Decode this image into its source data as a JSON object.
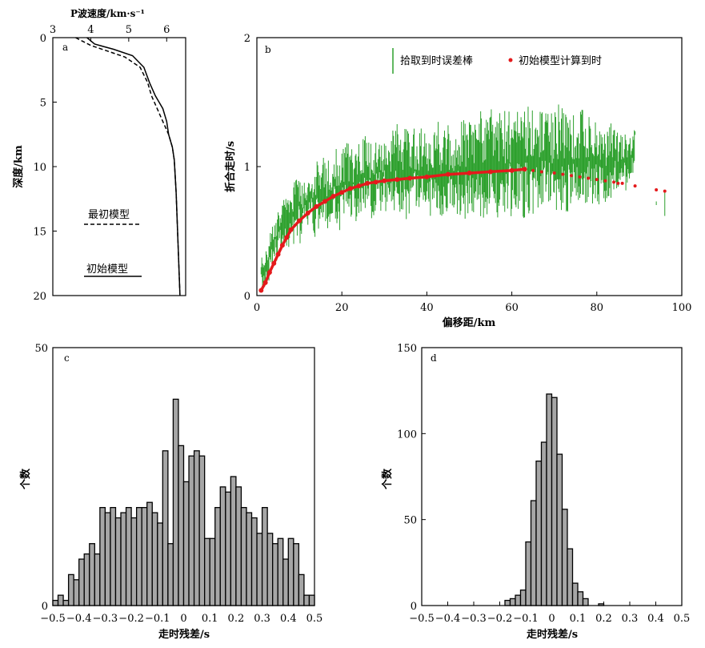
{
  "chart_data": [
    {
      "panel": "a",
      "type": "line",
      "xlabel": "P波速度/km·s⁻¹",
      "ylabel": "深度/km",
      "xlim": [
        3,
        6.5
      ],
      "ylim": [
        0,
        20
      ],
      "x_ticks": [
        "3",
        "4",
        "5",
        "6"
      ],
      "y_ticks": [
        "0",
        "5",
        "10",
        "15",
        "20"
      ],
      "series": [
        {
          "name": "最初模型",
          "style": "dashed",
          "x": [
            3.6,
            4.0,
            4.4,
            4.9,
            5.3,
            5.5,
            5.6,
            5.75,
            5.9,
            6.05,
            6.15,
            6.2,
            6.25,
            6.3,
            6.35
          ],
          "y": [
            0,
            0.6,
            1.0,
            1.5,
            2.3,
            3.5,
            4.5,
            5.5,
            6.5,
            7.5,
            8.5,
            9.5,
            12,
            16,
            20
          ]
        },
        {
          "name": "初始模型",
          "style": "solid",
          "x": [
            3.9,
            4.1,
            4.6,
            5.1,
            5.4,
            5.55,
            5.7,
            5.9,
            6.0,
            6.05,
            6.15,
            6.2,
            6.25,
            6.3,
            6.35
          ],
          "y": [
            0,
            0.5,
            0.9,
            1.4,
            2.3,
            3.5,
            4.5,
            5.5,
            6.5,
            7.5,
            8.5,
            9.5,
            12,
            16,
            20
          ]
        }
      ]
    },
    {
      "panel": "b",
      "type": "scatter",
      "xlabel": "偏移距/km",
      "ylabel": "折合走时/s",
      "xlim": [
        0,
        100
      ],
      "ylim": [
        0,
        2
      ],
      "x_ticks": [
        "0",
        "20",
        "40",
        "60",
        "80",
        "100"
      ],
      "y_ticks": [
        "0",
        "1",
        "2"
      ],
      "legend": [
        "拾取到时误差棒",
        "初始模型计算到时"
      ],
      "colors": {
        "error_bar": "#2ca02c",
        "model": "#e41a1c"
      },
      "error_bars": {
        "description_offsets": "picked travel times with error bars",
        "x": [
          1,
          2,
          3,
          4,
          5,
          6,
          7,
          8,
          9,
          10,
          11,
          12,
          13,
          14,
          15,
          16,
          17,
          18,
          19,
          20,
          21,
          22,
          23,
          24,
          25,
          26,
          27,
          28,
          29,
          30,
          31,
          32,
          33,
          34,
          35,
          36,
          37,
          38,
          39,
          40,
          41,
          42,
          43,
          44,
          45,
          46,
          47,
          48,
          49,
          50,
          51,
          52,
          53,
          54,
          55,
          56,
          57,
          58,
          59,
          60,
          61,
          62,
          63,
          64,
          65,
          66,
          67,
          68,
          69,
          70,
          71,
          72,
          73,
          74,
          75,
          76,
          77,
          78,
          79,
          80,
          81,
          82,
          83,
          84,
          85,
          86,
          87,
          88,
          89,
          94,
          96
        ],
        "y_low": [
          0.05,
          0.1,
          0.2,
          0.25,
          0.35,
          0.3,
          0.35,
          0.4,
          0.45,
          0.4,
          0.45,
          0.5,
          0.45,
          0.5,
          0.55,
          0.45,
          0.5,
          0.55,
          0.5,
          0.6,
          0.55,
          0.6,
          0.55,
          0.6,
          0.65,
          0.6,
          0.6,
          0.65,
          0.6,
          0.65,
          0.6,
          0.65,
          0.65,
          0.6,
          0.55,
          0.6,
          0.65,
          0.6,
          0.65,
          0.6,
          0.6,
          0.65,
          0.6,
          0.6,
          0.55,
          0.6,
          0.6,
          0.6,
          0.55,
          0.6,
          0.6,
          0.6,
          0.55,
          0.6,
          0.55,
          0.6,
          0.6,
          0.55,
          0.6,
          0.6,
          0.65,
          0.6,
          0.6,
          0.6,
          0.6,
          0.65,
          0.6,
          0.65,
          0.6,
          0.65,
          0.6,
          0.65,
          0.65,
          0.7,
          0.65,
          0.7,
          0.65,
          0.7,
          0.7,
          0.7,
          0.75,
          0.7,
          0.75,
          0.8,
          0.75,
          0.8,
          0.85,
          0.85,
          1.2,
          0.6,
          0.6
        ],
        "y_high": [
          0.3,
          0.4,
          0.55,
          0.65,
          0.7,
          0.75,
          0.8,
          0.9,
          0.95,
          0.95,
          1.0,
          1.05,
          1.0,
          1.1,
          1.1,
          1.05,
          1.1,
          1.15,
          1.1,
          1.15,
          1.2,
          1.15,
          1.2,
          1.2,
          1.25,
          1.2,
          1.25,
          1.3,
          1.25,
          1.3,
          1.25,
          1.3,
          1.35,
          1.3,
          1.3,
          1.25,
          1.3,
          1.3,
          1.35,
          1.3,
          1.3,
          1.35,
          1.3,
          1.3,
          1.35,
          1.3,
          1.35,
          1.4,
          1.35,
          1.35,
          1.4,
          1.45,
          1.4,
          1.4,
          1.45,
          1.4,
          1.45,
          1.5,
          1.45,
          1.45,
          1.5,
          1.45,
          1.5,
          1.45,
          1.5,
          1.45,
          1.5,
          1.45,
          1.45,
          1.45,
          1.5,
          1.45,
          1.45,
          1.4,
          1.4,
          1.45,
          1.4,
          1.4,
          1.35,
          1.4,
          1.3,
          1.3,
          1.35,
          1.3,
          1.25,
          1.3,
          1.25,
          1.3,
          1.3,
          0.85,
          0.85
        ]
      },
      "model": {
        "x": [
          1,
          2,
          3,
          4,
          5,
          6,
          7,
          8,
          10,
          12,
          14,
          16,
          18,
          20,
          22,
          24,
          26,
          28,
          30,
          33,
          36,
          40,
          45,
          50,
          55,
          60,
          63,
          65,
          67,
          70,
          72,
          74,
          76,
          78,
          80,
          82,
          84,
          85,
          86,
          89,
          94,
          96
        ],
        "y": [
          0.04,
          0.1,
          0.18,
          0.25,
          0.32,
          0.39,
          0.45,
          0.51,
          0.58,
          0.64,
          0.69,
          0.73,
          0.77,
          0.8,
          0.83,
          0.85,
          0.87,
          0.88,
          0.89,
          0.9,
          0.91,
          0.92,
          0.94,
          0.95,
          0.96,
          0.97,
          0.98,
          0.97,
          0.96,
          0.95,
          0.94,
          0.93,
          0.92,
          0.91,
          0.9,
          0.89,
          0.88,
          0.87,
          0.87,
          0.85,
          0.82,
          0.81
        ]
      }
    },
    {
      "panel": "c",
      "type": "bar",
      "xlabel": "走时残差/s",
      "ylabel": "个数",
      "xlim": [
        -0.5,
        0.5
      ],
      "ylim": [
        0,
        50
      ],
      "x_ticks": [
        "−0.5",
        "−0.4",
        "−0.3",
        "−0.2",
        "−0.1",
        "0",
        "0.1",
        "0.2",
        "0.3",
        "0.4",
        "0.5"
      ],
      "y_ticks": [
        "0",
        "50"
      ],
      "bin_width": 0.02,
      "bin_left": [
        -0.5,
        -0.48,
        -0.46,
        -0.44,
        -0.42,
        -0.4,
        -0.38,
        -0.36,
        -0.34,
        -0.32,
        -0.3,
        -0.28,
        -0.26,
        -0.24,
        -0.22,
        -0.2,
        -0.18,
        -0.16,
        -0.14,
        -0.12,
        -0.1,
        -0.08,
        -0.06,
        -0.04,
        -0.02,
        0.0,
        0.02,
        0.04,
        0.06,
        0.08,
        0.1,
        0.12,
        0.14,
        0.16,
        0.18,
        0.2,
        0.22,
        0.24,
        0.26,
        0.28,
        0.3,
        0.32,
        0.34,
        0.36,
        0.38,
        0.4,
        0.42,
        0.44,
        0.46,
        0.48
      ],
      "values": [
        1,
        2,
        1,
        6,
        5,
        9,
        10,
        12,
        10,
        19,
        18,
        19,
        17,
        18,
        19,
        17,
        19,
        19,
        20,
        18,
        16,
        30,
        12,
        40,
        31,
        24,
        29,
        30,
        29,
        13,
        13,
        19,
        23,
        22,
        25,
        23,
        19,
        18,
        17,
        14,
        19,
        14,
        12,
        13,
        9,
        13,
        12,
        6,
        2,
        2
      ]
    },
    {
      "panel": "d",
      "type": "bar",
      "xlabel": "走时残差/s",
      "ylabel": "个数",
      "xlim": [
        -0.5,
        0.5
      ],
      "ylim": [
        0,
        150
      ],
      "x_ticks": [
        "−0.5",
        "−0.4",
        "−0.3",
        "−0.2",
        "−0.1",
        "0",
        "0.1",
        "0.2",
        "0.3",
        "0.4",
        "0.5"
      ],
      "y_ticks": [
        "0",
        "50",
        "100",
        "150"
      ],
      "bin_width": 0.02,
      "bin_left": [
        -0.18,
        -0.16,
        -0.14,
        -0.12,
        -0.1,
        -0.08,
        -0.06,
        -0.04,
        -0.02,
        0.0,
        0.02,
        0.04,
        0.06,
        0.08,
        0.1,
        0.12,
        0.18
      ],
      "values": [
        3,
        4,
        6,
        9,
        37,
        61,
        84,
        95,
        123,
        121,
        88,
        56,
        33,
        13,
        8,
        4,
        1
      ]
    }
  ],
  "panel_labels": [
    "a",
    "b",
    "c",
    "d"
  ]
}
